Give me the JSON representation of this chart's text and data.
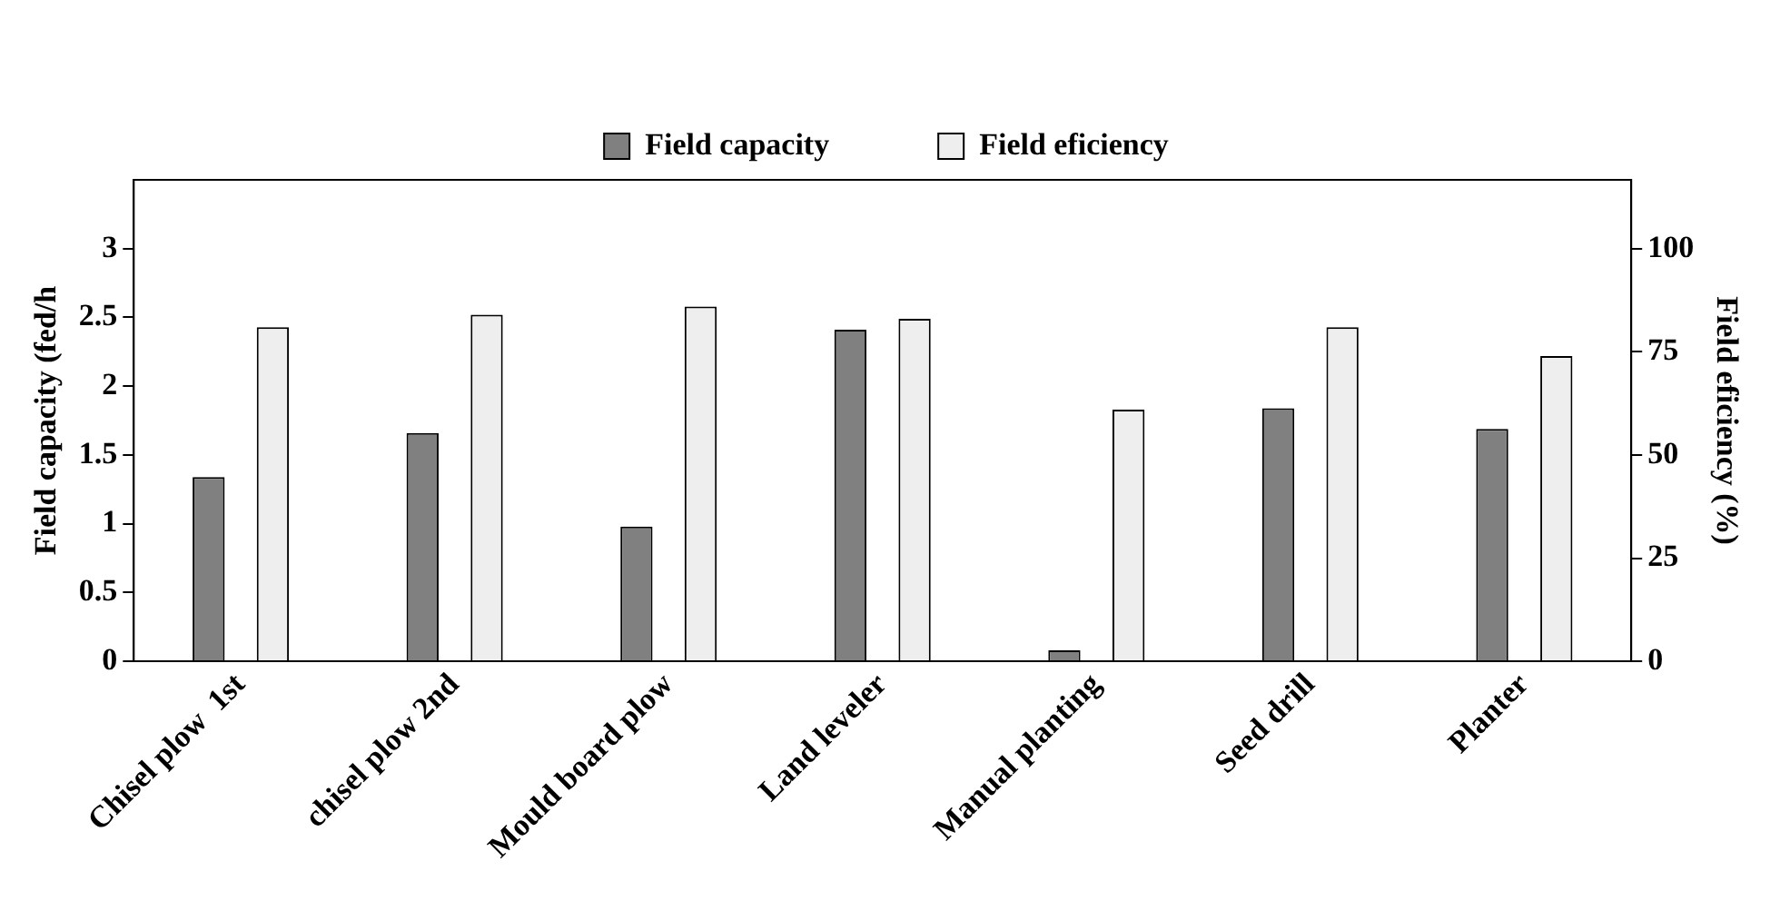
{
  "chart_data": {
    "type": "bar",
    "ylabel": "Field capacity (fed/h",
    "y2label": "Field eficiency (%)",
    "categories": [
      "Chisel plow  1st",
      "chisel plow 2nd",
      "Mould board plow",
      "Land leveler",
      "Manual planting",
      "Seed drill",
      "Planter"
    ],
    "series": [
      {
        "name": "Field capacity",
        "color": "#808080",
        "values": [
          1.34,
          1.66,
          0.98,
          2.41,
          0.08,
          1.84,
          1.69
        ]
      },
      {
        "name": "Field eficiency",
        "color": "#eeeeee",
        "axis": "y2",
        "values": [
          81,
          84,
          86,
          83,
          61,
          81,
          74
        ]
      }
    ],
    "ylim": [
      0,
      3.5
    ],
    "yticks": [
      0,
      0.5,
      1,
      1.5,
      2,
      2.5,
      3
    ],
    "y2lim": [
      0,
      116.7
    ],
    "y2ticks": [
      0,
      25,
      50,
      75,
      100
    ],
    "grid": false,
    "legend": "top"
  }
}
